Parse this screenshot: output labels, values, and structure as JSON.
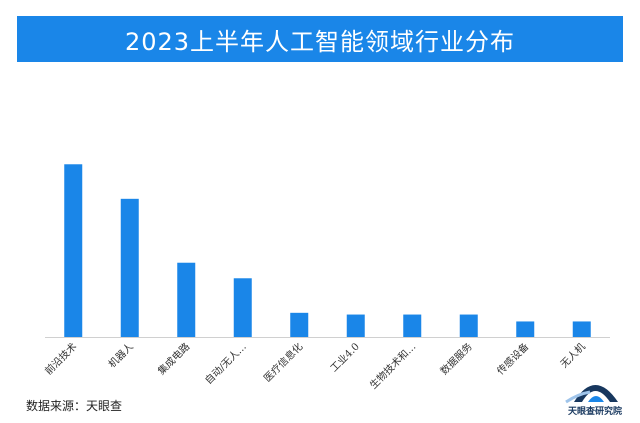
{
  "chart_data": {
    "type": "bar",
    "title": "2023上半年人工智能领域行业分布",
    "categories": [
      "前沿技术",
      "机器人",
      "集成电路",
      "自动/无人…",
      "医疗信息化",
      "工业4.0",
      "生物技术和…",
      "数据服务",
      "传感设备",
      "无人机"
    ],
    "values": [
      100,
      80,
      43,
      34,
      14,
      13,
      13,
      13,
      9,
      9
    ],
    "ylim": [
      0,
      110
    ],
    "grid": false,
    "bar_color": "#1a86e8"
  },
  "footer": {
    "source": "数据来源：天眼查",
    "logo_text": "天眼查研究院"
  },
  "colors": {
    "title_bg": "#1a86e8",
    "logo_blue": "#17375e"
  }
}
